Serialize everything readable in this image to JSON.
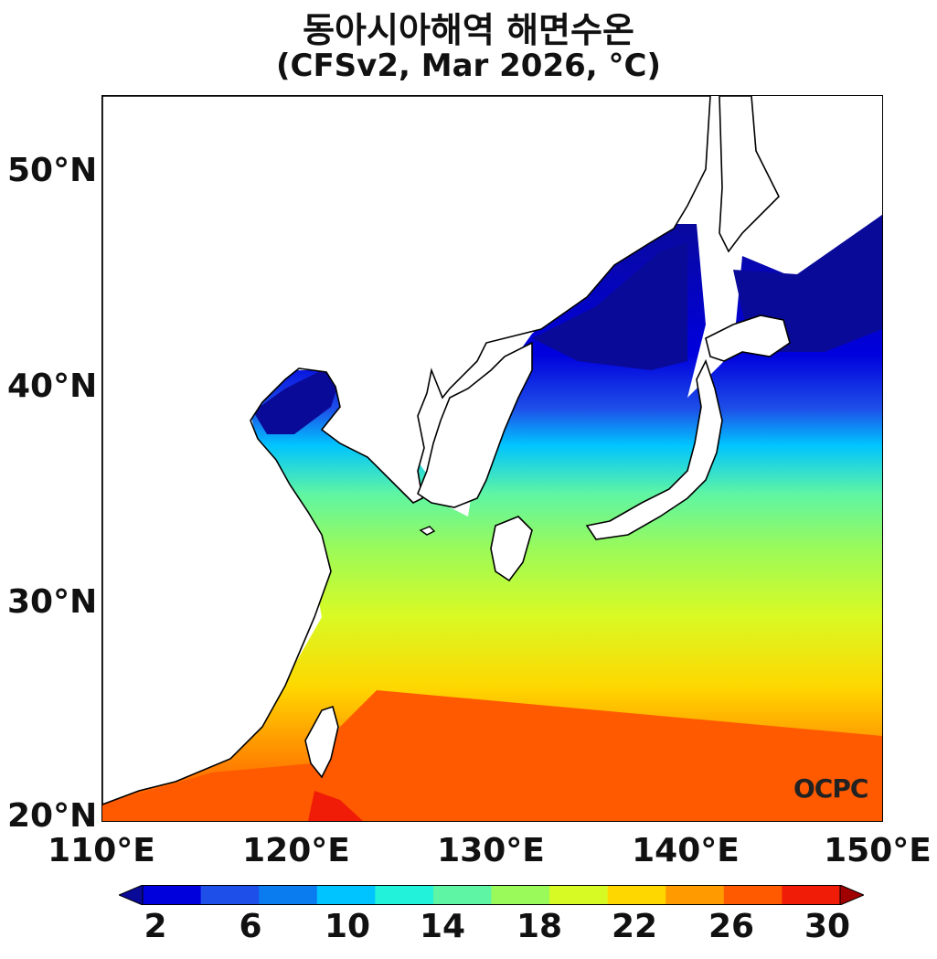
{
  "title_line1": "동아시아해역 해면수온",
  "title_line2": "(CFSv2, Mar 2026, °C)",
  "lat_labels": [
    "50°N",
    "40°N",
    "30°N",
    "20°N"
  ],
  "lon_labels": [
    "110°E",
    "120°E",
    "130°E",
    "140°E",
    "150°E"
  ],
  "colorbar": {
    "tick_labels": [
      "2",
      "6",
      "10",
      "14",
      "18",
      "22",
      "26",
      "30"
    ],
    "colors": [
      "#0a0a99",
      "#0000dd",
      "#1e4fe8",
      "#0a7cf0",
      "#00c4ff",
      "#22f2da",
      "#5ef5a4",
      "#9afa5a",
      "#d8fa24",
      "#ffd700",
      "#ff9a00",
      "#ff5a00",
      "#f01c08",
      "#a00000"
    ]
  },
  "logo": "OCPC"
}
